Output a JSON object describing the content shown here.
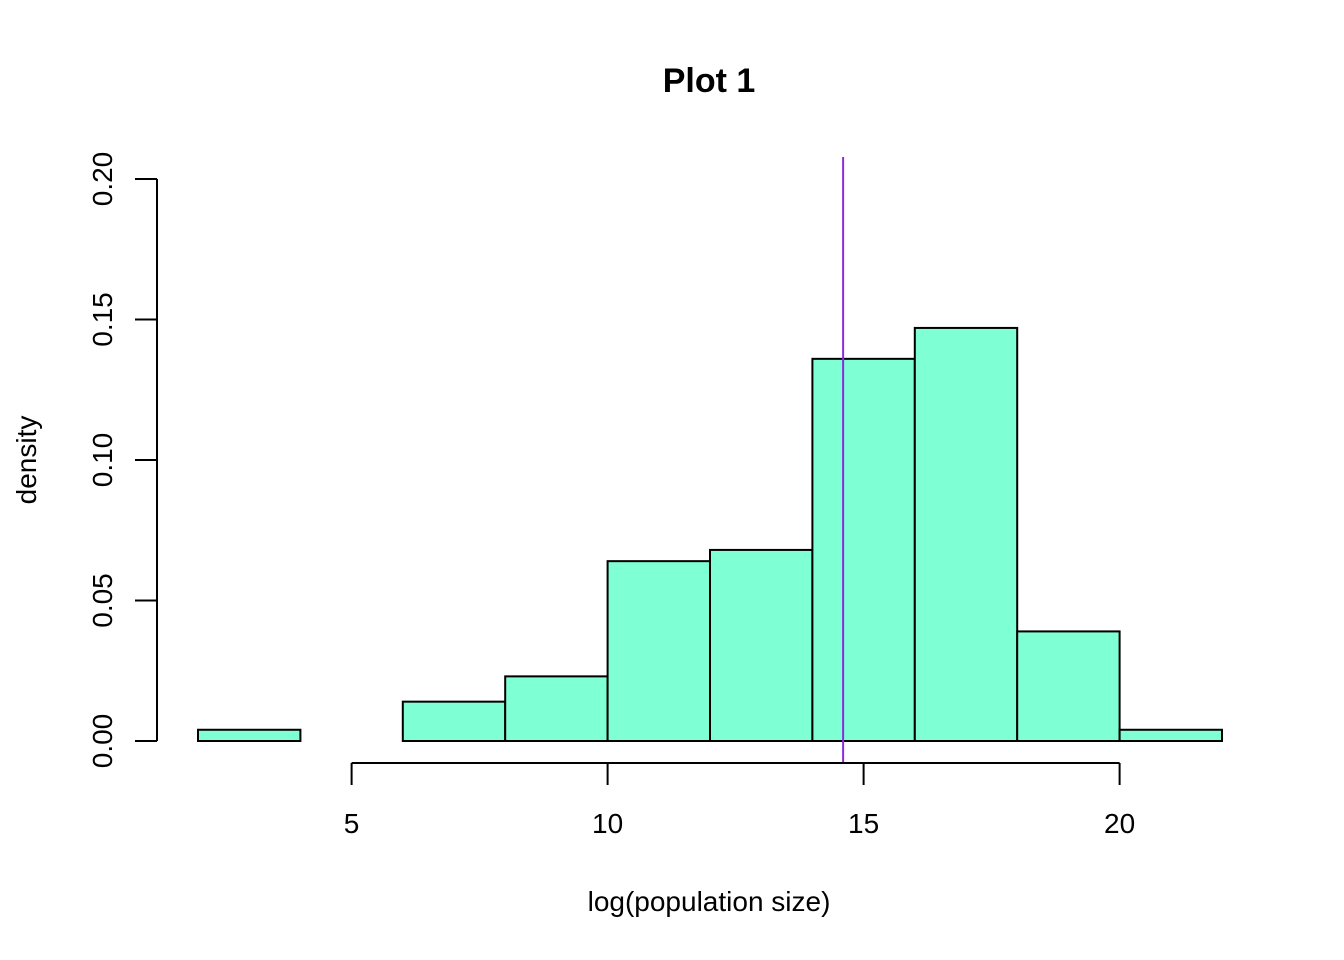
{
  "chart_data": {
    "type": "bar",
    "title": "Plot 1",
    "xlabel": "log(population size)",
    "ylabel": "density",
    "bins": [
      {
        "x0": 2,
        "x1": 4,
        "density": 0.004
      },
      {
        "x0": 4,
        "x1": 6,
        "density": 0.0
      },
      {
        "x0": 6,
        "x1": 8,
        "density": 0.014
      },
      {
        "x0": 8,
        "x1": 10,
        "density": 0.023
      },
      {
        "x0": 10,
        "x1": 12,
        "density": 0.064
      },
      {
        "x0": 12,
        "x1": 14,
        "density": 0.068
      },
      {
        "x0": 14,
        "x1": 16,
        "density": 0.136
      },
      {
        "x0": 16,
        "x1": 18,
        "density": 0.147
      },
      {
        "x0": 18,
        "x1": 20,
        "density": 0.039
      },
      {
        "x0": 20,
        "x1": 22,
        "density": 0.004
      }
    ],
    "reference_line": {
      "x": 14.6,
      "color": "#8A2BE2"
    },
    "xlim": [
      2,
      22
    ],
    "ylim": [
      0,
      0.2
    ],
    "x_ticks": [
      5,
      10,
      15,
      20
    ],
    "x_tick_labels": [
      "5",
      "10",
      "15",
      "20"
    ],
    "y_ticks": [
      0,
      0.05,
      0.1,
      0.15,
      0.2
    ],
    "y_tick_labels": [
      "0.00",
      "0.05",
      "0.10",
      "0.15",
      "0.20"
    ],
    "bar_color": "#7FFFD4",
    "grid": false,
    "legend": "none"
  }
}
